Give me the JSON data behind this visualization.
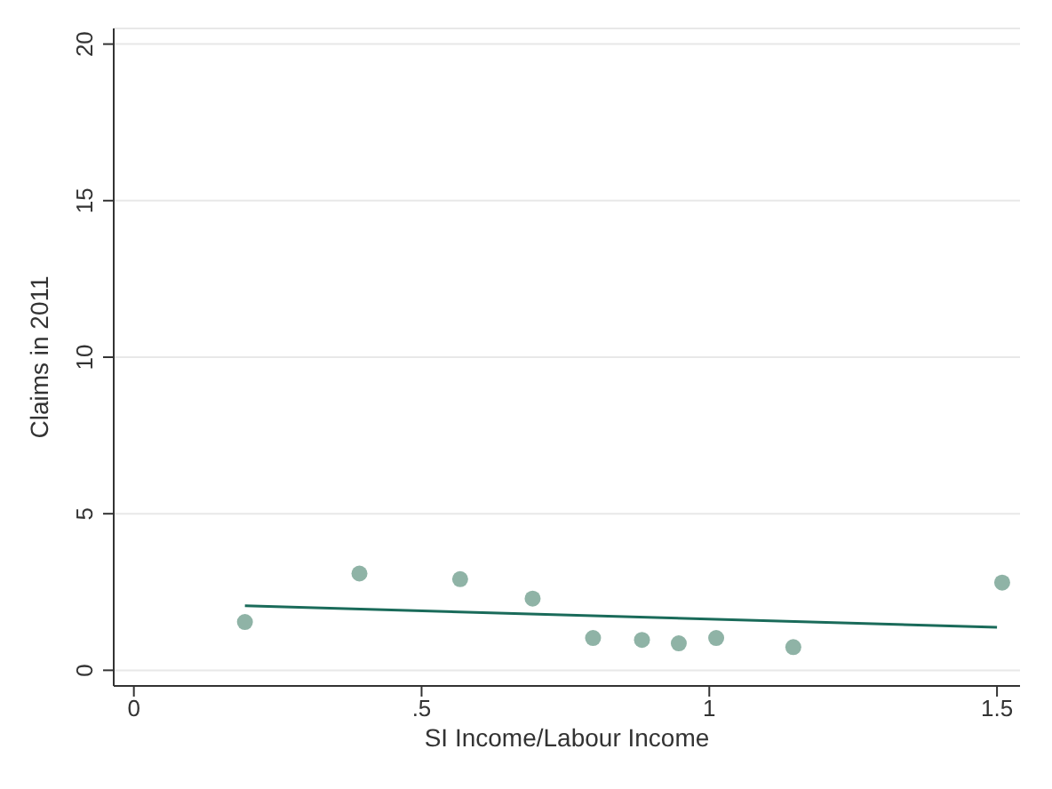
{
  "chart_data": {
    "type": "scatter",
    "xlabel": "SI Income/Labour Income",
    "ylabel": "Claims in 2011",
    "xlim": [
      -0.035,
      1.54
    ],
    "ylim": [
      -0.5,
      20.5
    ],
    "xticks": [
      0,
      {
        "value": 0.5,
        "label": ".5"
      },
      1,
      1.5
    ],
    "yticks": [
      0,
      5,
      10,
      15,
      20
    ],
    "grid": "y",
    "series": [
      {
        "marker": "circle",
        "color": "#8fb3a6",
        "x": [
          0.193,
          0.392,
          0.567,
          0.693,
          0.798,
          0.883,
          0.947,
          1.012,
          1.146,
          1.509
        ],
        "values": [
          1.54,
          3.09,
          2.91,
          2.29,
          1.03,
          0.97,
          0.86,
          1.03,
          0.74,
          2.8
        ]
      },
      {
        "type": "line",
        "marker": "none",
        "color": "#1a6b5a",
        "x": [
          0.193,
          1.5
        ],
        "values": [
          2.06,
          1.37
        ]
      }
    ]
  }
}
